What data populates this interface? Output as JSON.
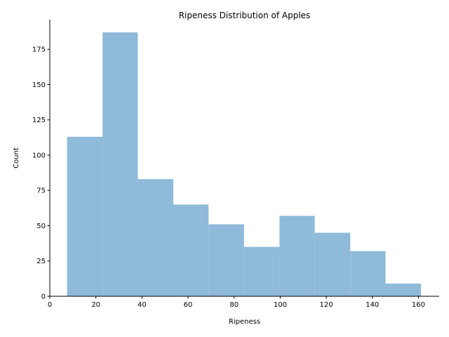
{
  "chart_data": {
    "type": "bar",
    "title": "Ripeness Distribution of Apples",
    "xlabel": "Ripeness",
    "ylabel": "Count",
    "bins": [
      {
        "start": 7.5,
        "end": 22.9,
        "count": 113
      },
      {
        "start": 22.9,
        "end": 38.2,
        "count": 187
      },
      {
        "start": 38.2,
        "end": 53.6,
        "count": 83
      },
      {
        "start": 53.6,
        "end": 68.9,
        "count": 65
      },
      {
        "start": 68.9,
        "end": 84.3,
        "count": 51
      },
      {
        "start": 84.3,
        "end": 99.7,
        "count": 35
      },
      {
        "start": 99.7,
        "end": 115.0,
        "count": 57
      },
      {
        "start": 115.0,
        "end": 130.4,
        "count": 45
      },
      {
        "start": 130.4,
        "end": 145.7,
        "count": 32
      },
      {
        "start": 145.7,
        "end": 161.1,
        "count": 9
      }
    ],
    "xlim": [
      0,
      169
    ],
    "ylim": [
      0,
      196
    ],
    "xticks": [
      0,
      20,
      40,
      60,
      80,
      100,
      120,
      140,
      160
    ],
    "yticks": [
      0,
      25,
      50,
      75,
      100,
      125,
      150,
      175
    ],
    "bar_color": "#8fbad9",
    "grid": false,
    "legend": "none"
  }
}
